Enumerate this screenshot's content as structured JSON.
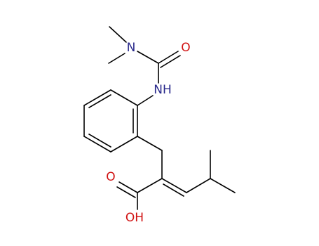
{
  "atoms": [
    {
      "label": "N"
    },
    {
      "label": "O"
    },
    {
      "label": "NH"
    },
    {
      "label": "O"
    },
    {
      "label": "OH"
    }
  ]
}
